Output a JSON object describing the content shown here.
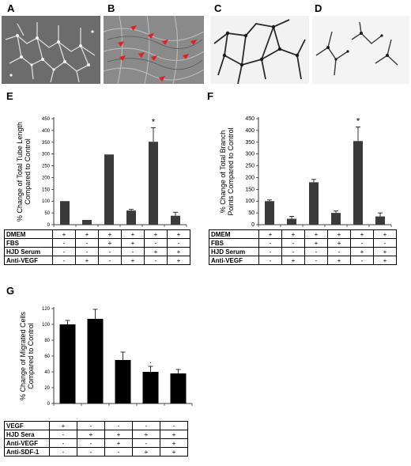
{
  "panel_letters": {
    "a": "A",
    "b": "B",
    "c": "C",
    "d": "D",
    "e": "E",
    "f": "F",
    "g": "G"
  },
  "chart_data": [
    {
      "panel": "E",
      "type": "bar",
      "ylabel": "% Change of Total Tube Length Compared to Control",
      "ylim": [
        0,
        450
      ],
      "yticks": [
        0,
        50,
        100,
        150,
        200,
        250,
        300,
        350,
        400,
        450
      ],
      "values": [
        100,
        20,
        298,
        60,
        352,
        38
      ],
      "errors": [
        0,
        0,
        0,
        5,
        60,
        15
      ],
      "significance": [
        "",
        "",
        "",
        "",
        "*",
        ""
      ],
      "bar_color": "#3a3a3a",
      "table": {
        "rows": [
          {
            "label": "DMEM",
            "cells": [
              "+",
              "+",
              "+",
              "+",
              "+",
              "+"
            ]
          },
          {
            "label": "FBS",
            "cells": [
              "-",
              "-",
              "+",
              "+",
              "-",
              "-"
            ]
          },
          {
            "label": "HJD Serum",
            "cells": [
              "-",
              "-",
              "-",
              "-",
              "+",
              "+"
            ]
          },
          {
            "label": "Anti-VEGF",
            "cells": [
              "-",
              "+",
              "-",
              "+",
              "-",
              "+"
            ]
          }
        ]
      }
    },
    {
      "panel": "F",
      "type": "bar",
      "ylabel": "% Change of Total Branch Points Compared to Control",
      "ylim": [
        0,
        450
      ],
      "yticks": [
        0,
        50,
        100,
        150,
        200,
        250,
        300,
        350,
        400,
        450
      ],
      "values": [
        100,
        25,
        180,
        50,
        355,
        35
      ],
      "errors": [
        5,
        10,
        12,
        8,
        60,
        15
      ],
      "significance": [
        "",
        "",
        "",
        "",
        "*",
        ""
      ],
      "bar_color": "#3a3a3a",
      "table": {
        "rows": [
          {
            "label": "DMEM",
            "cells": [
              "+",
              "+",
              "+",
              "+",
              "+",
              "+"
            ]
          },
          {
            "label": "FBS",
            "cells": [
              "-",
              "-",
              "+",
              "+",
              "-",
              "-"
            ]
          },
          {
            "label": "HJD Serum",
            "cells": [
              "-",
              "-",
              "-",
              "-",
              "+",
              "+"
            ]
          },
          {
            "label": "Anti-VEGF",
            "cells": [
              "-",
              "+",
              "-",
              "+",
              "-",
              "+"
            ]
          }
        ]
      }
    },
    {
      "panel": "G",
      "type": "bar",
      "ylabel": "% Change of Migrated Cells Compared to Control",
      "ylim": [
        0,
        120
      ],
      "yticks": [
        0,
        20,
        40,
        60,
        80,
        100,
        120
      ],
      "values": [
        100,
        107,
        55,
        40,
        38
      ],
      "errors": [
        5,
        12,
        10,
        7,
        5
      ],
      "significance": [
        "",
        "",
        "",
        ".",
        ""
      ],
      "bar_color": "#000000",
      "table": {
        "rows": [
          {
            "label": "VEGF",
            "cells": [
              "+",
              "-",
              "-",
              "-",
              "-"
            ]
          },
          {
            "label": "HJD Sera",
            "cells": [
              "-",
              "+",
              "+",
              "+",
              "+"
            ]
          },
          {
            "label": "Anti-VEGF",
            "cells": [
              "-",
              "-",
              "+",
              "-",
              "+"
            ]
          },
          {
            "label": "Anti-SDF-1",
            "cells": [
              "-",
              "-",
              "-",
              "+",
              "+"
            ]
          }
        ]
      }
    }
  ]
}
